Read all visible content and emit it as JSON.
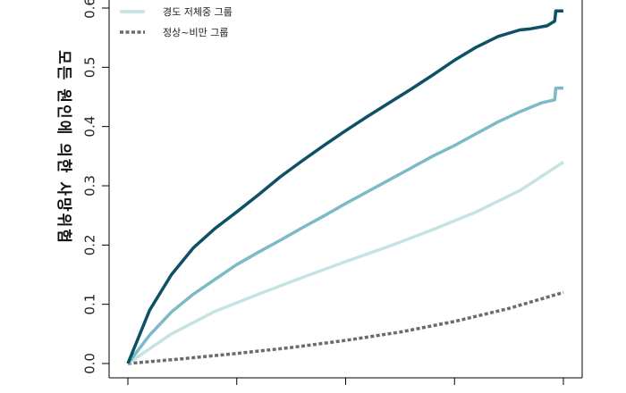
{
  "chart_data": {
    "type": "line",
    "title": "",
    "xlabel": "",
    "ylabel": "모든 원인에 의한 사망위험",
    "ylim": [
      0.0,
      0.6
    ],
    "yticks": [
      "0.0",
      "0.1",
      "0.2",
      "0.3",
      "0.4",
      "0.5",
      "0.6"
    ],
    "xlim": [
      0,
      4
    ],
    "grid": false,
    "legend_position": "top",
    "series": [
      {
        "name": "",
        "color": "#0e5166",
        "style": "step-solid",
        "x": [
          0,
          0.2,
          0.4,
          0.6,
          0.8,
          1.0,
          1.2,
          1.4,
          1.6,
          1.8,
          2.0,
          2.2,
          2.4,
          2.6,
          2.8,
          3.0,
          3.2,
          3.4,
          3.6,
          3.7,
          3.85,
          3.92,
          3.93,
          4.0
        ],
        "values": [
          0.0,
          0.09,
          0.15,
          0.195,
          0.228,
          0.256,
          0.285,
          0.315,
          0.342,
          0.368,
          0.393,
          0.417,
          0.44,
          0.463,
          0.487,
          0.512,
          0.534,
          0.552,
          0.563,
          0.565,
          0.57,
          0.578,
          0.595,
          0.595
        ]
      },
      {
        "name": "",
        "color": "#7bbac6",
        "style": "step-solid",
        "x": [
          0,
          0.2,
          0.4,
          0.6,
          0.8,
          1.0,
          1.2,
          1.4,
          1.6,
          1.8,
          2.0,
          2.2,
          2.4,
          2.6,
          2.8,
          3.0,
          3.2,
          3.4,
          3.6,
          3.8,
          3.92,
          3.93,
          4.0
        ],
        "values": [
          0.0,
          0.048,
          0.087,
          0.117,
          0.142,
          0.167,
          0.188,
          0.208,
          0.229,
          0.249,
          0.27,
          0.29,
          0.31,
          0.33,
          0.35,
          0.368,
          0.388,
          0.408,
          0.425,
          0.44,
          0.445,
          0.465,
          0.465
        ]
      },
      {
        "name": "경도 저체중 그룹",
        "color": "#c6e3e4",
        "style": "solid",
        "x": [
          0,
          0.4,
          0.8,
          1.2,
          1.6,
          2.0,
          2.4,
          2.8,
          3.2,
          3.6,
          4.0
        ],
        "values": [
          0.0,
          0.05,
          0.088,
          0.117,
          0.145,
          0.172,
          0.198,
          0.226,
          0.256,
          0.292,
          0.34
        ]
      },
      {
        "name": "정상~비만 그룹",
        "color": "#6b6b6b",
        "style": "dashed",
        "x": [
          0,
          0.5,
          1.0,
          1.5,
          2.0,
          2.5,
          3.0,
          3.5,
          4.0
        ],
        "values": [
          0.0,
          0.008,
          0.017,
          0.027,
          0.039,
          0.053,
          0.071,
          0.093,
          0.12
        ]
      }
    ]
  }
}
